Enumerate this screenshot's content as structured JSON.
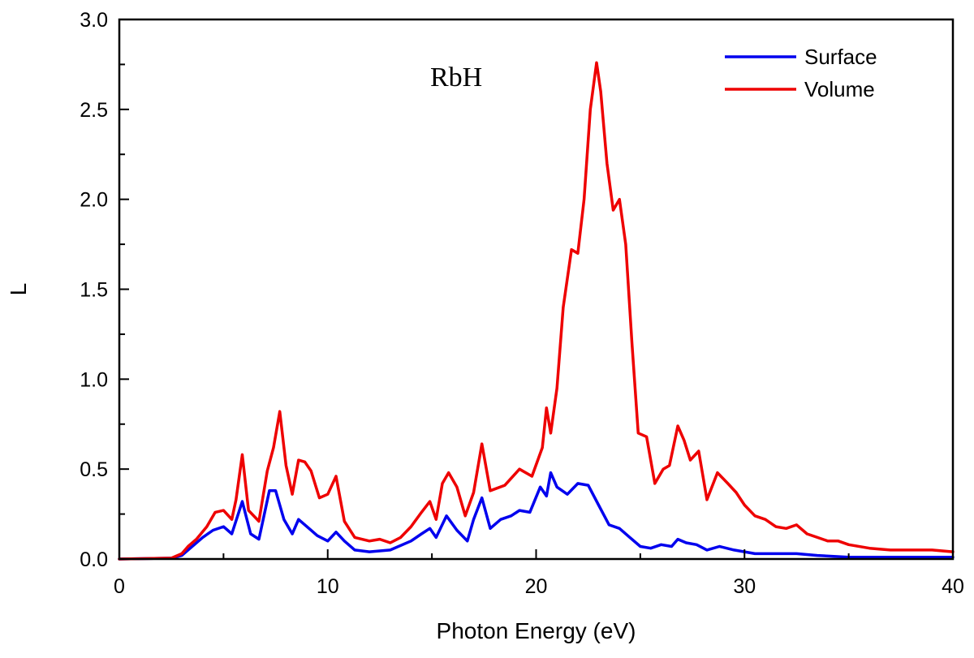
{
  "chart_data": {
    "type": "line",
    "annotation": "RbH",
    "xlabel": "Photon Energy (eV)",
    "ylabel": "L",
    "xlim": [
      0,
      40
    ],
    "ylim": [
      0,
      3.0
    ],
    "xticks": [
      0,
      10,
      20,
      30,
      40
    ],
    "xtick_labels": [
      "0",
      "10",
      "20",
      "30",
      "40"
    ],
    "yticks": [
      0,
      0.5,
      1.0,
      1.5,
      2.0,
      2.5,
      3.0
    ],
    "ytick_labels": [
      "0.0",
      "0.5",
      "1.0",
      "1.5",
      "2.0",
      "2.5",
      "3.0"
    ],
    "grid": false,
    "legend_position": "top-right",
    "series": [
      {
        "name": "Surface",
        "color": "#0000ee",
        "x": [
          0,
          2.5,
          3.0,
          3.3,
          3.6,
          4.0,
          4.5,
          5.0,
          5.4,
          5.9,
          6.3,
          6.7,
          7.2,
          7.5,
          7.9,
          8.3,
          8.6,
          9.0,
          9.5,
          10.0,
          10.4,
          10.8,
          11.3,
          12.0,
          13.0,
          14.0,
          14.5,
          14.9,
          15.2,
          15.7,
          16.2,
          16.7,
          17.0,
          17.4,
          17.8,
          18.3,
          18.8,
          19.2,
          19.7,
          20.2,
          20.5,
          20.7,
          21.0,
          21.5,
          22.0,
          22.5,
          23.0,
          23.5,
          24.0,
          24.5,
          25.0,
          25.5,
          26.0,
          26.5,
          26.8,
          27.2,
          27.7,
          28.2,
          28.8,
          29.5,
          30.5,
          31.5,
          32.5,
          33.5,
          35.0,
          40.0
        ],
        "y": [
          0,
          0.005,
          0.02,
          0.05,
          0.08,
          0.12,
          0.16,
          0.18,
          0.14,
          0.32,
          0.14,
          0.11,
          0.38,
          0.38,
          0.22,
          0.14,
          0.22,
          0.18,
          0.13,
          0.1,
          0.15,
          0.1,
          0.05,
          0.04,
          0.05,
          0.1,
          0.14,
          0.17,
          0.12,
          0.24,
          0.16,
          0.1,
          0.22,
          0.34,
          0.17,
          0.22,
          0.24,
          0.27,
          0.26,
          0.4,
          0.35,
          0.48,
          0.4,
          0.36,
          0.42,
          0.41,
          0.3,
          0.19,
          0.17,
          0.12,
          0.07,
          0.06,
          0.08,
          0.07,
          0.11,
          0.09,
          0.08,
          0.05,
          0.07,
          0.05,
          0.03,
          0.03,
          0.03,
          0.02,
          0.01,
          0.01
        ]
      },
      {
        "name": "Volume",
        "color": "#ee0000",
        "x": [
          0,
          2.5,
          3.0,
          3.3,
          3.7,
          4.2,
          4.6,
          5.0,
          5.4,
          5.6,
          5.9,
          6.2,
          6.7,
          7.1,
          7.4,
          7.7,
          8.0,
          8.3,
          8.6,
          8.9,
          9.2,
          9.6,
          10.0,
          10.4,
          10.8,
          11.3,
          12.0,
          12.5,
          13.0,
          13.5,
          14.0,
          14.5,
          14.9,
          15.2,
          15.5,
          15.8,
          16.2,
          16.6,
          17.0,
          17.4,
          17.8,
          18.5,
          19.2,
          19.8,
          20.3,
          20.5,
          20.7,
          21.0,
          21.3,
          21.7,
          22.0,
          22.3,
          22.6,
          22.9,
          23.1,
          23.4,
          23.7,
          24.0,
          24.3,
          24.6,
          24.9,
          25.3,
          25.7,
          26.1,
          26.4,
          26.8,
          27.1,
          27.4,
          27.8,
          28.2,
          28.7,
          29.2,
          29.6,
          30.0,
          30.5,
          31.0,
          31.5,
          32.0,
          32.5,
          33.0,
          33.5,
          34.0,
          34.5,
          35.0,
          36.0,
          37.0,
          38.0,
          39.0,
          40.0
        ],
        "y": [
          0,
          0.005,
          0.03,
          0.07,
          0.11,
          0.18,
          0.26,
          0.27,
          0.22,
          0.33,
          0.58,
          0.27,
          0.21,
          0.49,
          0.62,
          0.82,
          0.52,
          0.36,
          0.55,
          0.54,
          0.49,
          0.34,
          0.36,
          0.46,
          0.21,
          0.12,
          0.1,
          0.11,
          0.09,
          0.12,
          0.18,
          0.26,
          0.32,
          0.22,
          0.42,
          0.48,
          0.4,
          0.24,
          0.37,
          0.64,
          0.38,
          0.41,
          0.5,
          0.46,
          0.62,
          0.84,
          0.7,
          0.95,
          1.4,
          1.72,
          1.7,
          2.0,
          2.5,
          2.76,
          2.6,
          2.2,
          1.94,
          2.0,
          1.75,
          1.2,
          0.7,
          0.68,
          0.42,
          0.5,
          0.52,
          0.74,
          0.66,
          0.55,
          0.6,
          0.33,
          0.48,
          0.42,
          0.37,
          0.3,
          0.24,
          0.22,
          0.18,
          0.17,
          0.19,
          0.14,
          0.12,
          0.1,
          0.1,
          0.08,
          0.06,
          0.05,
          0.05,
          0.05,
          0.04
        ]
      }
    ]
  }
}
